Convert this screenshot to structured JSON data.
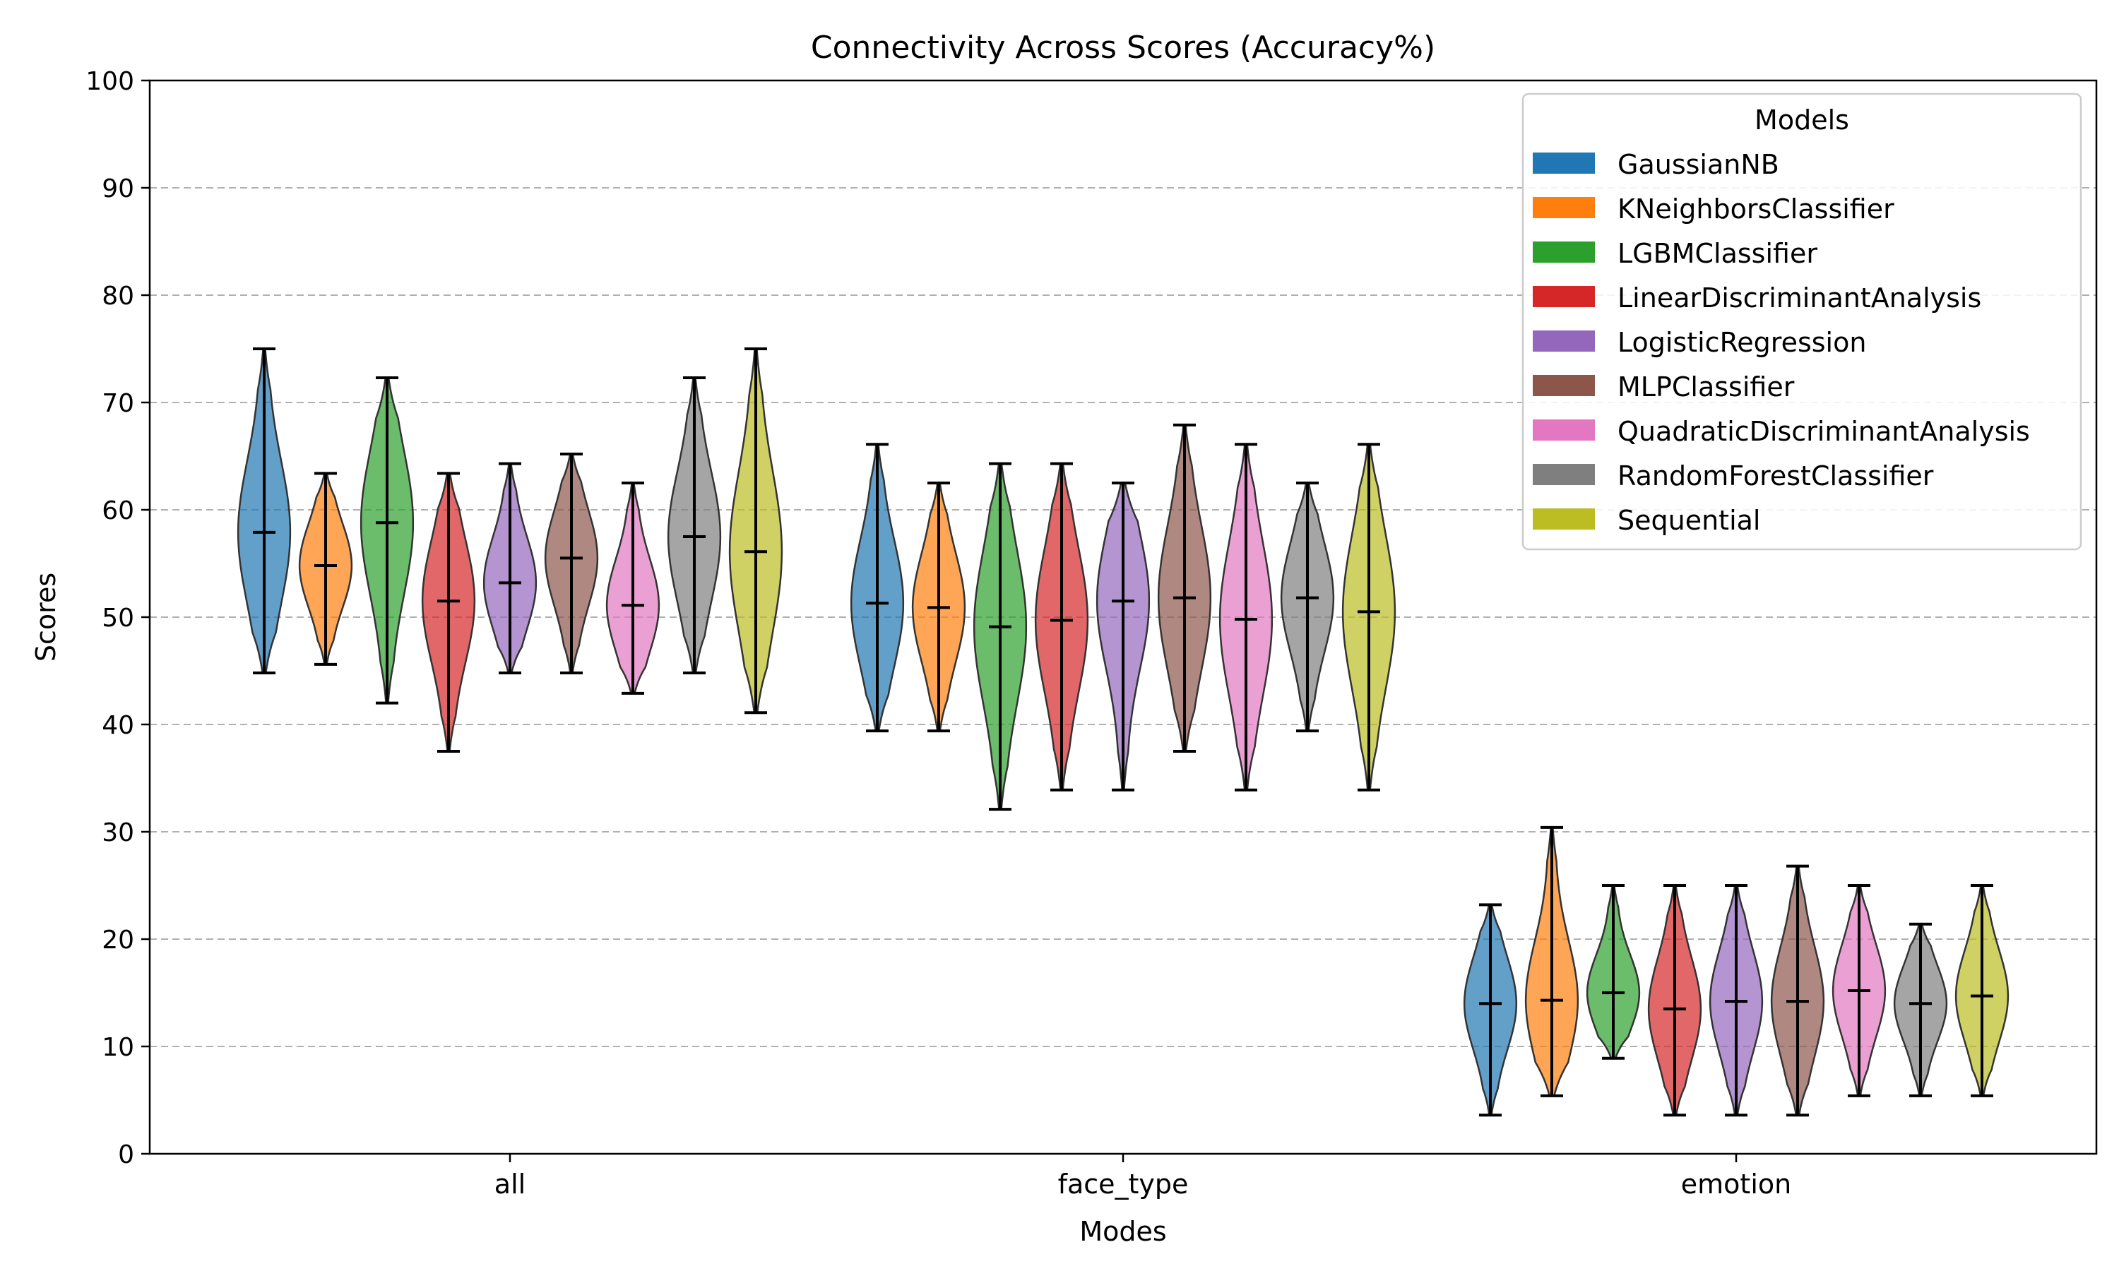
{
  "chart_data": {
    "type": "violin",
    "title": "Connectivity Across Scores (Accuracy%)",
    "xlabel": "Modes",
    "ylabel": "Scores",
    "ylim": [
      0,
      100
    ],
    "yticks": [
      0,
      10,
      20,
      30,
      40,
      50,
      60,
      70,
      80,
      90,
      100
    ],
    "grid": "y-dashed",
    "legend": {
      "title": "Models",
      "placement": "top-right"
    },
    "categories": [
      "all",
      "face_type",
      "emotion"
    ],
    "series": [
      {
        "name": "GaussianNB",
        "color": "#1f77b4",
        "values": [
          {
            "min": 44.8,
            "max": 75.0,
            "median": 57.9
          },
          {
            "min": 39.4,
            "max": 66.1,
            "median": 51.3
          },
          {
            "min": 3.6,
            "max": 23.2,
            "median": 14.0
          }
        ]
      },
      {
        "name": "KNeighborsClassifier",
        "color": "#ff7f0e",
        "values": [
          {
            "min": 45.6,
            "max": 63.4,
            "median": 54.8
          },
          {
            "min": 39.4,
            "max": 62.5,
            "median": 50.9
          },
          {
            "min": 5.4,
            "max": 30.4,
            "median": 14.3
          }
        ]
      },
      {
        "name": "LGBMClassifier",
        "color": "#2ca02c",
        "values": [
          {
            "min": 42.0,
            "max": 72.3,
            "median": 58.8
          },
          {
            "min": 32.1,
            "max": 64.3,
            "median": 49.1
          },
          {
            "min": 8.9,
            "max": 25.0,
            "median": 15.0
          }
        ]
      },
      {
        "name": "LinearDiscriminantAnalysis",
        "color": "#d62728",
        "values": [
          {
            "min": 37.5,
            "max": 63.4,
            "median": 51.5
          },
          {
            "min": 33.9,
            "max": 64.3,
            "median": 49.7
          },
          {
            "min": 3.6,
            "max": 25.0,
            "median": 13.5
          }
        ]
      },
      {
        "name": "LogisticRegression",
        "color": "#9467bd",
        "values": [
          {
            "min": 44.8,
            "max": 64.3,
            "median": 53.2
          },
          {
            "min": 33.9,
            "max": 62.5,
            "median": 51.5
          },
          {
            "min": 3.6,
            "max": 25.0,
            "median": 14.2
          }
        ]
      },
      {
        "name": "MLPClassifier",
        "color": "#8c564b",
        "values": [
          {
            "min": 44.8,
            "max": 65.2,
            "median": 55.5
          },
          {
            "min": 37.5,
            "max": 67.9,
            "median": 51.8
          },
          {
            "min": 3.6,
            "max": 26.8,
            "median": 14.2
          }
        ]
      },
      {
        "name": "QuadraticDiscriminantAnalysis",
        "color": "#e377c2",
        "values": [
          {
            "min": 42.9,
            "max": 62.5,
            "median": 51.1
          },
          {
            "min": 33.9,
            "max": 66.1,
            "median": 49.8
          },
          {
            "min": 5.4,
            "max": 25.0,
            "median": 15.2
          }
        ]
      },
      {
        "name": "RandomForestClassifier",
        "color": "#7f7f7f",
        "values": [
          {
            "min": 44.8,
            "max": 72.3,
            "median": 57.5
          },
          {
            "min": 39.4,
            "max": 62.5,
            "median": 51.8
          },
          {
            "min": 5.4,
            "max": 21.4,
            "median": 14.0
          }
        ]
      },
      {
        "name": "Sequential",
        "color": "#bcbd22",
        "values": [
          {
            "min": 41.1,
            "max": 75.0,
            "median": 56.1
          },
          {
            "min": 33.9,
            "max": 66.1,
            "median": 50.5
          },
          {
            "min": 5.4,
            "max": 25.0,
            "median": 14.7
          }
        ]
      }
    ]
  }
}
